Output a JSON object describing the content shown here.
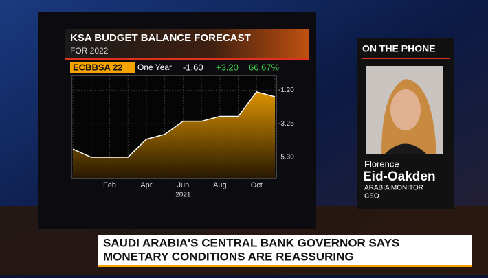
{
  "chart_data": {
    "type": "area",
    "title": "KSA BUDGET BALANCE FORECAST",
    "subtitle": "FOR 2022",
    "ticker": "ECBBSA 22",
    "period": "One Year",
    "last": "-1.60",
    "change": "+3.20",
    "change_pct": "66.67%",
    "year_label": "2021",
    "categories": [
      null,
      null,
      "Feb",
      null,
      "Apr",
      null,
      "Jun",
      null,
      "Aug",
      null,
      "Oct",
      null
    ],
    "values": [
      -4.8,
      -5.3,
      -5.3,
      -5.3,
      -4.2,
      -3.9,
      -3.1,
      -3.1,
      -2.8,
      -2.8,
      -1.3,
      -1.6
    ],
    "color": "#f5a300",
    "ylim": [
      -6.6,
      -0.3
    ],
    "yticks": [
      {
        "value": -1.2,
        "label": "-1.20"
      },
      -3.25,
      {
        "value": -5.3,
        "label": "-5.30"
      }
    ],
    "grid": true
  },
  "screen": {
    "caller_heading": "ON THE PHONE",
    "first_name": "Florence",
    "last_name": "Eid-Oakden",
    "organization": "ARABIA MONITOR",
    "role": "CEO",
    "headline": [
      "SAUDI ARABIA'S CENTRAL BANK GOVERNOR SAYS",
      "MONETARY CONDITIONS ARE REASSURING"
    ]
  }
}
